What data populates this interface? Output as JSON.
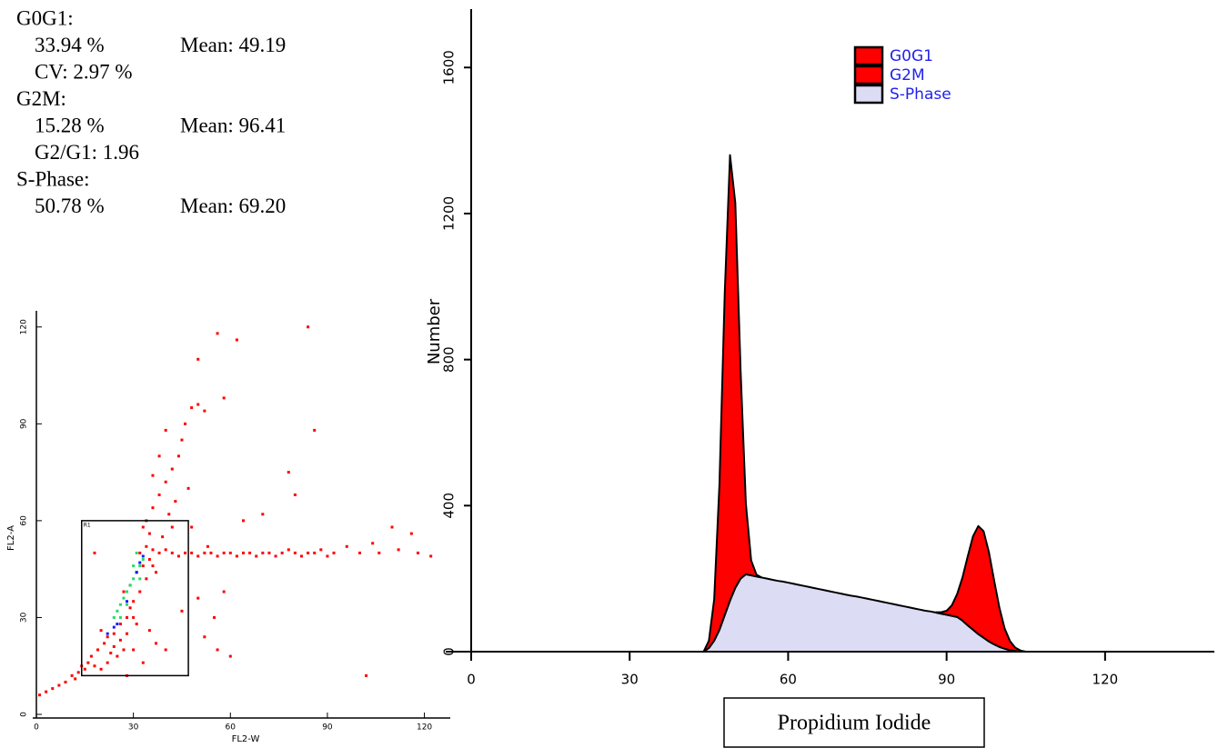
{
  "stats": [
    {
      "label": "G0G1:",
      "lines": [
        [
          "33.94 %",
          "Mean: 49.19"
        ],
        [
          "CV: 2.97 %"
        ]
      ]
    },
    {
      "label": "G2M:",
      "lines": [
        [
          "15.28 %",
          "Mean: 96.41"
        ],
        [
          "G2/G1: 1.96"
        ]
      ]
    },
    {
      "label": "S-Phase:",
      "lines": [
        [
          "50.78 %",
          "Mean: 69.20"
        ]
      ]
    }
  ],
  "chart_data": [
    {
      "type": "area",
      "stacked": true,
      "xlabel": "Propidium Iodide",
      "ylabel": "Number",
      "x": [
        44,
        45,
        46,
        47,
        48,
        49,
        50,
        51,
        52,
        53,
        54,
        55,
        56,
        57,
        58,
        59,
        60,
        61,
        62,
        63,
        64,
        65,
        66,
        67,
        68,
        69,
        70,
        71,
        72,
        73,
        74,
        75,
        76,
        77,
        78,
        79,
        80,
        81,
        82,
        83,
        84,
        85,
        86,
        87,
        88,
        89,
        90,
        91,
        92,
        93,
        94,
        95,
        96,
        97,
        98,
        99,
        100,
        101,
        102,
        103,
        104,
        105
      ],
      "series": [
        {
          "name": "G0G1",
          "color": "#ff0000",
          "values": [
            0,
            20,
            113,
            399,
            882,
            1220,
            1054,
            570,
            193,
            41,
            5,
            0,
            null,
            null,
            null,
            null,
            null,
            null,
            null,
            null,
            null,
            null,
            null,
            null,
            null,
            null,
            null,
            null,
            null,
            null,
            null,
            null,
            null,
            null,
            null,
            null,
            null,
            null,
            null,
            null,
            null,
            null,
            null,
            null,
            null,
            null,
            null,
            null,
            null,
            null,
            null,
            null,
            null,
            null,
            null,
            null,
            null,
            null,
            null,
            null,
            null,
            null
          ]
        },
        {
          "name": "G2M",
          "color": "#ff0000",
          "values": [
            null,
            null,
            null,
            null,
            null,
            null,
            null,
            null,
            null,
            null,
            null,
            null,
            null,
            null,
            null,
            null,
            null,
            null,
            null,
            null,
            null,
            null,
            null,
            null,
            null,
            null,
            null,
            null,
            null,
            null,
            null,
            null,
            null,
            null,
            null,
            null,
            null,
            null,
            null,
            null,
            null,
            null,
            null,
            null,
            1,
            4,
            11,
            29,
            63,
            118,
            189,
            256,
            296,
            292,
            245,
            175,
            107,
            55,
            25,
            9,
            3,
            0
          ]
        },
        {
          "name": "S-Phase",
          "color": "#dcdcf5",
          "values": [
            0,
            10,
            30,
            60,
            100,
            140,
            175,
            200,
            212,
            209,
            206,
            203,
            200,
            197,
            194,
            192,
            189,
            186,
            183,
            180,
            177,
            174,
            171,
            168,
            165,
            162,
            159,
            156,
            153,
            151,
            148,
            145,
            142,
            139,
            136,
            133,
            130,
            127,
            124,
            121,
            118,
            115,
            112,
            110,
            107,
            104,
            101,
            98,
            95,
            85,
            72,
            60,
            48,
            38,
            28,
            20,
            13,
            8,
            4,
            2,
            0,
            0
          ]
        }
      ],
      "xlim": [
        0,
        140
      ],
      "xticks": [
        0,
        30,
        60,
        90,
        120
      ],
      "ylim": [
        0,
        1760
      ],
      "yticks": [
        0,
        400,
        800,
        1200,
        1600
      ]
    },
    {
      "type": "scatter",
      "xlabel": "FL2-W",
      "ylabel": "FL2-A",
      "series": [
        {
          "color": "#ff0000",
          "x": [
            1,
            3,
            5,
            7,
            9,
            11,
            12,
            13,
            15,
            16,
            14,
            18,
            20,
            22,
            17,
            19,
            21,
            23,
            25,
            27,
            24,
            26,
            28,
            22,
            20,
            30,
            29,
            27,
            31,
            33,
            35,
            32,
            34,
            36,
            38,
            40,
            42,
            44,
            46,
            48,
            50,
            52,
            54,
            56,
            58,
            60,
            62,
            64,
            66,
            68,
            70,
            72,
            74,
            76,
            78,
            80,
            82,
            84,
            86,
            88,
            90,
            92,
            96,
            100,
            106,
            112,
            118,
            122,
            116,
            110,
            104,
            34,
            36,
            38,
            40,
            42,
            44,
            45,
            46,
            48,
            50,
            52,
            40,
            38,
            36,
            41,
            43,
            47,
            35,
            33,
            39,
            42,
            58,
            50,
            56,
            62,
            86,
            84,
            80,
            78,
            64,
            70,
            58,
            55,
            52,
            50,
            45,
            40,
            37,
            35,
            30,
            28,
            33,
            60,
            56,
            102,
            18,
            48,
            53,
            36,
            26,
            24,
            31,
            29,
            34,
            32,
            37,
            28,
            30
          ],
          "y": [
            6,
            7,
            8,
            9,
            10,
            12,
            11,
            13,
            14,
            16,
            15,
            15,
            14,
            16,
            18,
            20,
            22,
            19,
            18,
            20,
            25,
            28,
            30,
            24,
            26,
            35,
            40,
            38,
            44,
            46,
            48,
            50,
            52,
            51,
            50,
            51,
            50,
            49,
            50,
            50,
            49,
            50,
            50,
            49,
            50,
            50,
            49,
            50,
            50,
            49,
            50,
            50,
            49,
            50,
            51,
            50,
            49,
            50,
            50,
            51,
            49,
            50,
            52,
            50,
            50,
            51,
            50,
            49,
            56,
            58,
            53,
            60,
            64,
            68,
            72,
            76,
            80,
            85,
            90,
            95,
            96,
            94,
            88,
            80,
            74,
            62,
            66,
            70,
            56,
            58,
            55,
            58,
            98,
            110,
            118,
            116,
            88,
            120,
            68,
            75,
            60,
            62,
            38,
            30,
            24,
            36,
            32,
            20,
            22,
            26,
            20,
            12,
            16,
            18,
            20,
            12,
            50,
            58,
            52,
            46,
            23,
            21,
            28,
            33,
            42,
            38,
            44,
            25,
            30
          ]
        },
        {
          "color": "#22dd66",
          "x": [
            24,
            25,
            26,
            27,
            28,
            29,
            30,
            31,
            32,
            33,
            30,
            26,
            28,
            32,
            31
          ],
          "y": [
            30,
            32,
            34,
            36,
            38,
            40,
            42,
            44,
            46,
            48,
            46,
            30,
            34,
            42,
            50
          ]
        },
        {
          "color": "#1a1aff",
          "x": [
            22,
            25,
            28,
            31,
            32,
            24,
            33
          ],
          "y": [
            25,
            28,
            35,
            44,
            47,
            27,
            49
          ]
        }
      ],
      "regions": [
        {
          "label": "R1",
          "x": [
            14,
            47
          ],
          "y": [
            12,
            60
          ]
        }
      ],
      "xlim": [
        0,
        128
      ],
      "xticks": [
        0,
        30,
        60,
        90,
        120
      ],
      "ylim": [
        0,
        125
      ],
      "yticks": [
        0,
        30,
        60,
        90,
        120
      ]
    }
  ]
}
